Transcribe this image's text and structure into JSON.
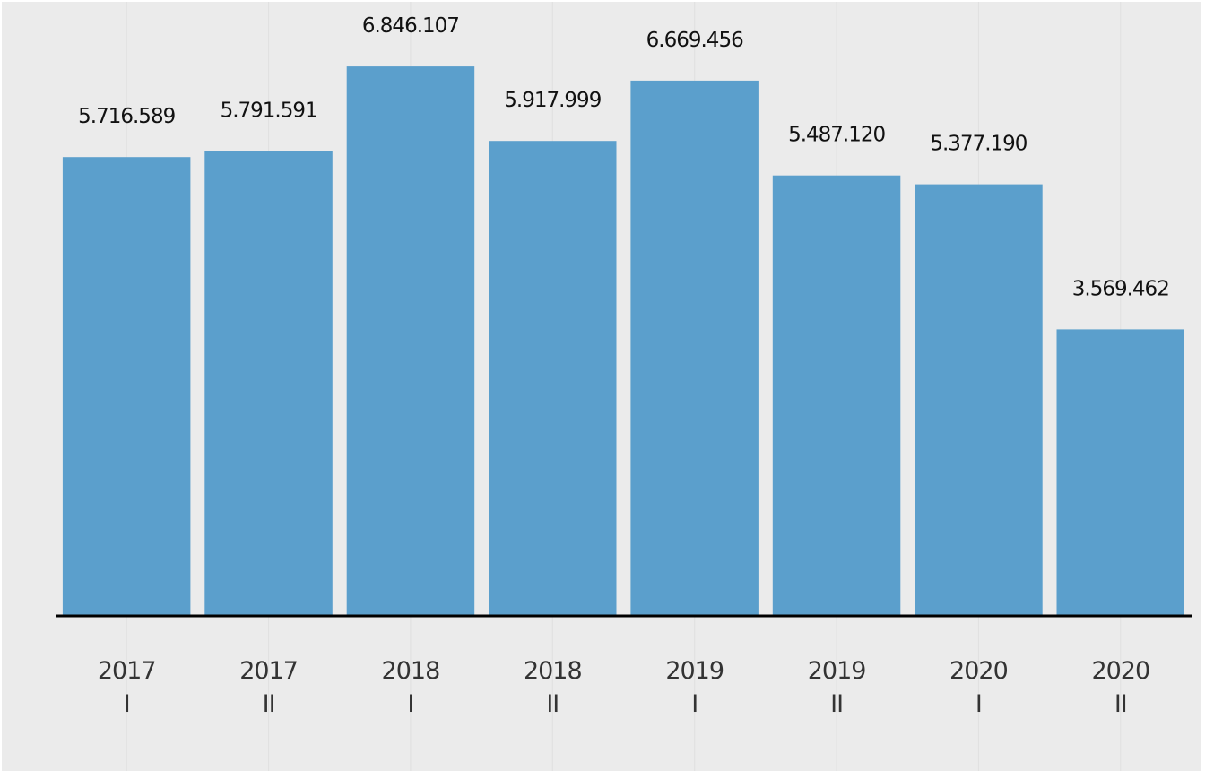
{
  "chart_data": {
    "type": "bar",
    "categories": [
      [
        "2017",
        "I"
      ],
      [
        "2017",
        "II"
      ],
      [
        "2018",
        "I"
      ],
      [
        "2018",
        "II"
      ],
      [
        "2019",
        "I"
      ],
      [
        "2019",
        "II"
      ],
      [
        "2020",
        "I"
      ],
      [
        "2020",
        "II"
      ]
    ],
    "values": [
      5716589,
      5791591,
      6846107,
      5917999,
      6669456,
      5487120,
      5377190,
      3569462
    ],
    "value_labels": [
      "5.716.589",
      "5.791.591",
      "6.846.107",
      "5.917.999",
      "6.669.456",
      "5.487.120",
      "5.377.190",
      "3.569.462"
    ],
    "title": "",
    "xlabel": "",
    "ylabel": "",
    "ylim": [
      0,
      7450000
    ],
    "grid": "vertical-faint",
    "legend": "none",
    "colors": {
      "background": "#ebebeb",
      "bar": "#5b9fcc",
      "baseline": "#000000",
      "grid": "#e0e0e0"
    }
  }
}
